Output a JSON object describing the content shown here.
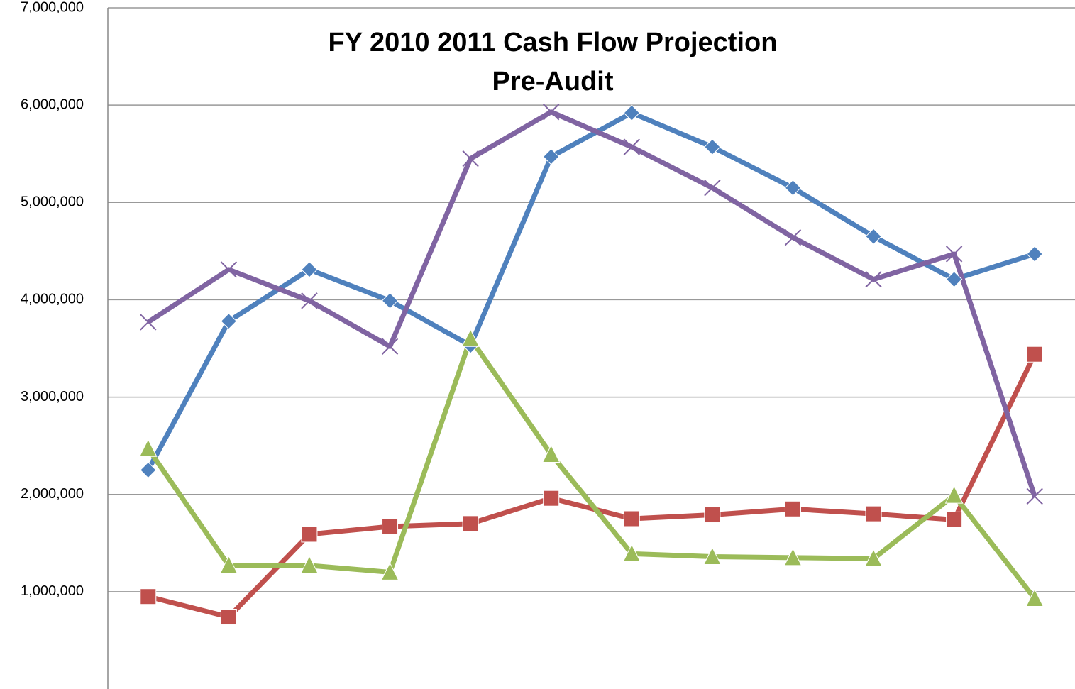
{
  "chart_data": {
    "type": "line",
    "title": "FY 2010 2011 Cash Flow Projection",
    "subtitle": "Pre-Audit",
    "categories": [
      null,
      null,
      null,
      null,
      null,
      null,
      null,
      null,
      null,
      null,
      null,
      null
    ],
    "series": [
      {
        "color": "#4f81bd",
        "marker": "diamond",
        "values": [
          2250000,
          3780000,
          4310000,
          3990000,
          3530000,
          5470000,
          5920000,
          5570000,
          5150000,
          4650000,
          4210000,
          4470000
        ]
      },
      {
        "color": "#c0504d",
        "marker": "square",
        "values": [
          950000,
          740000,
          1590000,
          1670000,
          1700000,
          1960000,
          1750000,
          1790000,
          1850000,
          1800000,
          1740000,
          3440000
        ]
      },
      {
        "color": "#9bbb59",
        "marker": "triangle",
        "values": [
          2470000,
          1270000,
          1270000,
          1200000,
          3600000,
          2410000,
          1390000,
          1360000,
          1350000,
          1340000,
          1990000,
          930000
        ]
      },
      {
        "color": "#8064a2",
        "marker": "x",
        "values": [
          3770000,
          4310000,
          3990000,
          3520000,
          5450000,
          5930000,
          5570000,
          5150000,
          4640000,
          4210000,
          4470000,
          1980000
        ]
      }
    ],
    "ylim": [
      0,
      7000000
    ],
    "yticks": [
      {
        "value": 1000000,
        "label": "1,000,000"
      },
      {
        "value": 2000000,
        "label": "2,000,000"
      },
      {
        "value": 3000000,
        "label": "3,000,000"
      },
      {
        "value": 4000000,
        "label": "4,000,000"
      },
      {
        "value": 5000000,
        "label": "5,000,000"
      },
      {
        "value": 6000000,
        "label": "6,000,000"
      },
      {
        "value": 7000000,
        "label": "7,000,000"
      }
    ],
    "grid": true
  }
}
